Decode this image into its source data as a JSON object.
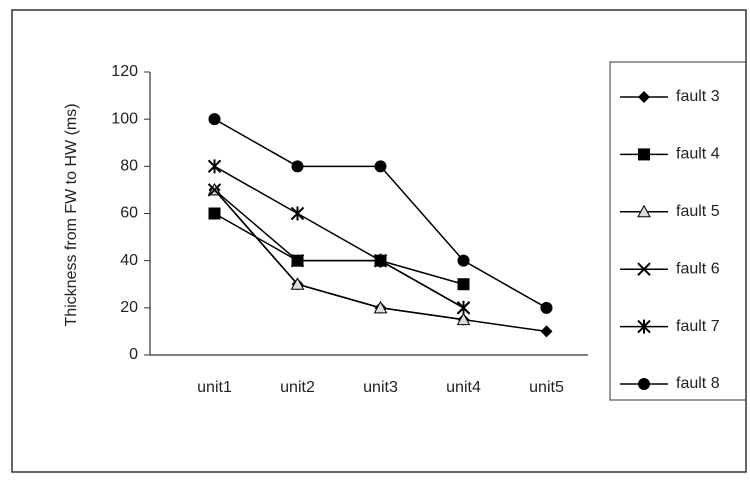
{
  "chart_data": {
    "type": "line",
    "y_label": "Thickness from FW to HW (ms)",
    "categories": [
      "unit1",
      "unit2",
      "unit3",
      "unit4",
      "unit5"
    ],
    "series": [
      {
        "name": "fault 3",
        "color": "#000000",
        "marker": "diamond",
        "values": [
          70,
          30,
          20,
          15,
          10
        ]
      },
      {
        "name": "fault 4",
        "color": "#000000",
        "marker": "square",
        "values": [
          60,
          40,
          40,
          30,
          null
        ]
      },
      {
        "name": "fault 5",
        "color": "#000000",
        "marker": "triangle",
        "values": [
          70,
          30,
          20,
          15,
          null
        ]
      },
      {
        "name": "fault 6",
        "color": "#000000",
        "marker": "x",
        "values": [
          70,
          40,
          40,
          20,
          null
        ]
      },
      {
        "name": "fault 7",
        "color": "#000000",
        "marker": "asterisk",
        "values": [
          80,
          60,
          40,
          20,
          null
        ]
      },
      {
        "name": "fault 8",
        "color": "#000000",
        "marker": "circle",
        "values": [
          100,
          80,
          80,
          40,
          20
        ]
      }
    ],
    "ylim": [
      0,
      120
    ],
    "yticks": [
      0,
      20,
      40,
      60,
      80,
      100,
      120
    ],
    "grid": false,
    "legend": "right"
  }
}
